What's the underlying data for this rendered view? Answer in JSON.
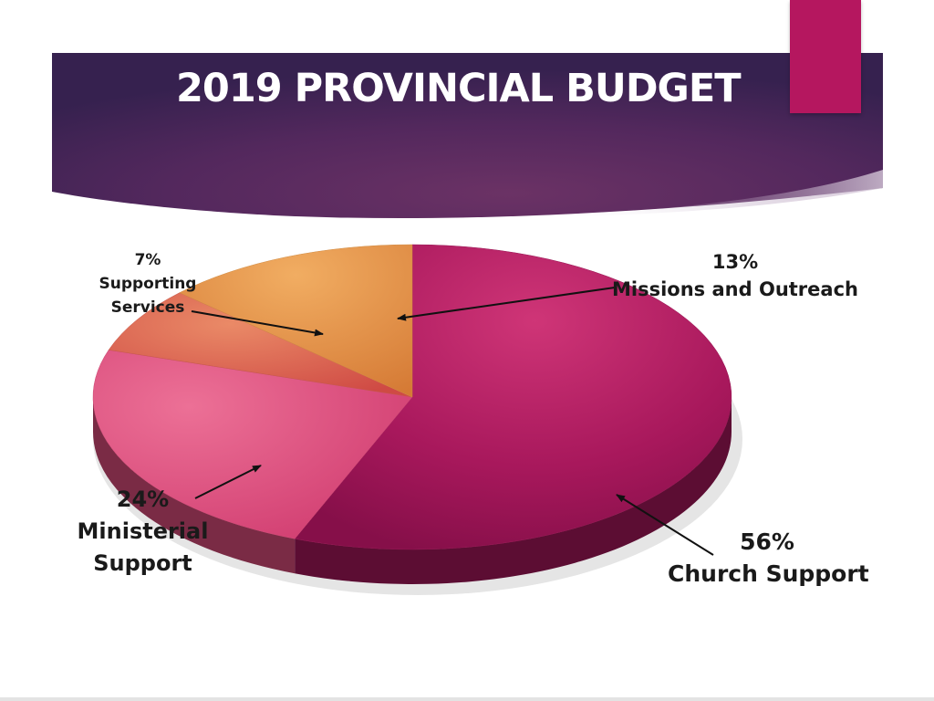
{
  "slide": {
    "title": "2019 PROVINCIAL BUDGET",
    "colors": {
      "banner_dark": "#3b2553",
      "banner_mid": "#62305f",
      "accent": "#b5175f"
    }
  },
  "chart_data": {
    "type": "pie",
    "title": "2019 PROVINCIAL BUDGET",
    "style": "3d-tilted",
    "start_angle_deg": 0,
    "direction": "clockwise",
    "slices": [
      {
        "key": "church",
        "label": "Church Support",
        "percent_label": "56%",
        "value": 56,
        "color": "#a8185c"
      },
      {
        "key": "ministerial",
        "label": "Ministerial Support",
        "percent_label": "24%",
        "value": 24,
        "color": "#de4f7e"
      },
      {
        "key": "supporting",
        "label": "Supporting Services",
        "percent_label": "7%",
        "value": 7,
        "color": "#dd6254"
      },
      {
        "key": "missions",
        "label": "Missions and Outreach",
        "percent_label": "13%",
        "value": 13,
        "color": "#e79a4a"
      }
    ],
    "labels": {
      "supporting": [
        "7%",
        "Supporting",
        "Services"
      ],
      "missions": [
        "13%",
        "Missions and Outreach"
      ],
      "ministerial": [
        "24%",
        "Ministerial",
        "Support"
      ],
      "church": [
        "56%",
        "Church Support"
      ]
    }
  }
}
